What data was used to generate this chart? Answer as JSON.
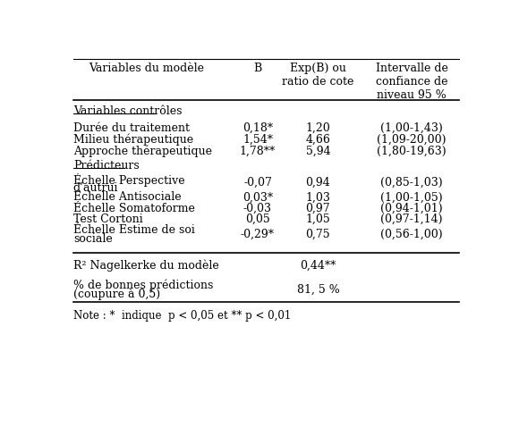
{
  "col_headers": [
    "Variables du modèle",
    "B",
    "Exp(B) ou\nratio de cote",
    "Intervalle de\nconfiance de\nniveau 95 %"
  ],
  "section1_label": "Variables contrôles",
  "section2_label": "Prédicteurs",
  "rows_section1": [
    [
      "Durée du traitement",
      "0,18*",
      "1,20",
      "(1,00-1,43)"
    ],
    [
      "Milieu thérapeutique",
      "1,54*",
      "4,66",
      "(1,09-20,00)"
    ],
    [
      "Approche thérapeutique",
      "1,78**",
      "5,94",
      "(1,80-19,63)"
    ]
  ],
  "rows_section2": [
    [
      "Échelle Perspective\nd’autrui",
      "-0,07",
      "0,94",
      "(0,85-1,03)"
    ],
    [
      "Échelle Antisociale",
      "0,03*",
      "1,03",
      "(1,00-1,05)"
    ],
    [
      "Échelle Somatoforme",
      "-0,03",
      "0,97",
      "(0,94-1,01)"
    ],
    [
      "Test Cortoni",
      "0,05",
      "1,05",
      "(0,97-1,14)"
    ],
    [
      "Échelle Estime de soi\nsociale",
      "-0,29*",
      "0,75",
      "(0,56-1,00)"
    ]
  ],
  "note": "Note : *  indique  p < 0,05 et ** p < 0,01",
  "bg_color": "#ffffff",
  "text_color": "#000000",
  "font_size": 9.0
}
